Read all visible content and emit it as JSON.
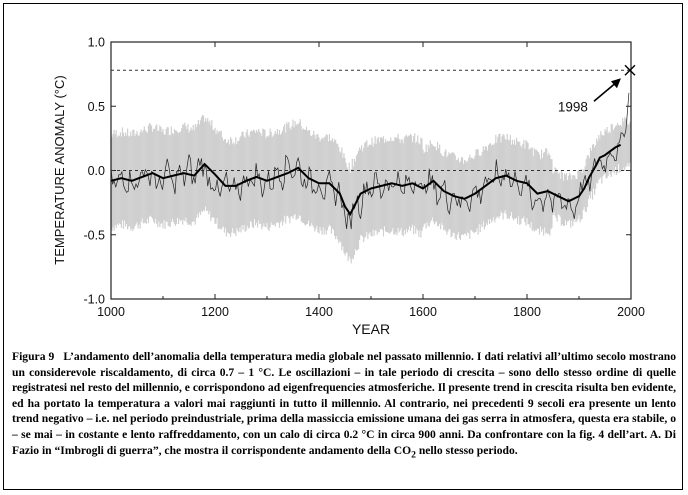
{
  "chart_data": {
    "type": "line",
    "title": "",
    "xlabel": "YEAR",
    "ylabel": "TEMPERATURE ANOMALY (°C)",
    "xlim": [
      1000,
      2000
    ],
    "ylim": [
      -1.0,
      1.0
    ],
    "x_ticks": [
      "1000",
      "1200",
      "1400",
      "1600",
      "1800",
      "2000"
    ],
    "y_ticks": [
      "-1.0",
      "-0.5",
      "0.0",
      "0.5",
      "1.0"
    ],
    "grid": false,
    "reference_lines": [
      0.0,
      0.78
    ],
    "annotation": {
      "label": "1998",
      "x": 1998,
      "y": 0.78
    },
    "series": [
      {
        "style": "smoothed",
        "x": [
          1000,
          1020,
          1040,
          1060,
          1080,
          1100,
          1120,
          1140,
          1160,
          1180,
          1200,
          1220,
          1240,
          1260,
          1280,
          1300,
          1320,
          1340,
          1360,
          1380,
          1400,
          1420,
          1440,
          1450,
          1460,
          1470,
          1480,
          1500,
          1520,
          1540,
          1560,
          1580,
          1600,
          1620,
          1640,
          1660,
          1680,
          1700,
          1720,
          1740,
          1760,
          1780,
          1800,
          1820,
          1840,
          1860,
          1880,
          1900,
          1910,
          1920,
          1930,
          1940,
          1950,
          1960,
          1970,
          1980
        ],
        "values": [
          -0.08,
          -0.06,
          -0.08,
          -0.05,
          -0.02,
          -0.06,
          -0.04,
          -0.02,
          -0.04,
          0.05,
          -0.03,
          -0.12,
          -0.12,
          -0.08,
          -0.05,
          -0.08,
          -0.05,
          -0.02,
          0.02,
          -0.06,
          -0.1,
          -0.1,
          -0.18,
          -0.28,
          -0.34,
          -0.26,
          -0.18,
          -0.14,
          -0.12,
          -0.1,
          -0.12,
          -0.1,
          -0.14,
          -0.08,
          -0.16,
          -0.2,
          -0.22,
          -0.18,
          -0.12,
          -0.06,
          -0.04,
          -0.08,
          -0.1,
          -0.18,
          -0.16,
          -0.2,
          -0.24,
          -0.2,
          -0.14,
          -0.05,
          0.02,
          0.1,
          0.12,
          0.15,
          0.18,
          0.2
        ]
      },
      {
        "style": "annual",
        "x": [
          1000,
          1010,
          1020,
          1030,
          1040,
          1050,
          1060,
          1070,
          1080,
          1090,
          1100,
          1110,
          1120,
          1130,
          1140,
          1150,
          1160,
          1170,
          1180,
          1190,
          1200,
          1210,
          1220,
          1230,
          1240,
          1250,
          1260,
          1270,
          1280,
          1290,
          1300,
          1310,
          1320,
          1330,
          1340,
          1350,
          1360,
          1370,
          1380,
          1390,
          1400,
          1410,
          1420,
          1430,
          1440,
          1450,
          1460,
          1470,
          1480,
          1490,
          1500,
          1510,
          1520,
          1530,
          1540,
          1550,
          1560,
          1570,
          1580,
          1590,
          1600,
          1610,
          1620,
          1630,
          1640,
          1650,
          1660,
          1670,
          1680,
          1690,
          1700,
          1710,
          1720,
          1730,
          1740,
          1750,
          1760,
          1770,
          1780,
          1790,
          1800,
          1810,
          1820,
          1830,
          1840,
          1850,
          1860,
          1870,
          1880,
          1890,
          1900,
          1910,
          1920,
          1930,
          1940,
          1950,
          1960,
          1970,
          1980,
          1985,
          1990,
          1995,
          1998
        ],
        "values": [
          -0.05,
          -0.15,
          0.0,
          -0.12,
          -0.02,
          -0.18,
          0.05,
          -0.1,
          0.02,
          -0.14,
          -0.08,
          0.04,
          -0.16,
          0.02,
          -0.1,
          0.08,
          -0.12,
          0.1,
          0.0,
          -0.08,
          -0.1,
          -0.22,
          -0.05,
          -0.2,
          -0.1,
          -0.18,
          0.0,
          -0.14,
          0.02,
          -0.16,
          -0.05,
          -0.12,
          0.05,
          -0.08,
          0.12,
          -0.05,
          0.08,
          -0.12,
          -0.02,
          -0.16,
          -0.05,
          -0.2,
          -0.08,
          -0.22,
          -0.12,
          -0.38,
          -0.42,
          -0.2,
          -0.3,
          -0.08,
          -0.18,
          -0.05,
          -0.2,
          -0.04,
          -0.16,
          -0.02,
          -0.22,
          -0.06,
          -0.14,
          -0.02,
          -0.2,
          -0.05,
          -0.12,
          -0.22,
          -0.1,
          -0.28,
          -0.14,
          -0.3,
          -0.18,
          -0.26,
          -0.12,
          -0.22,
          -0.04,
          -0.16,
          0.02,
          -0.1,
          0.05,
          -0.14,
          -0.02,
          -0.2,
          -0.05,
          -0.3,
          -0.16,
          -0.28,
          -0.12,
          -0.32,
          -0.18,
          -0.3,
          -0.2,
          -0.36,
          -0.16,
          -0.08,
          -0.14,
          0.05,
          0.08,
          0.02,
          0.18,
          0.1,
          0.22,
          0.3,
          0.35,
          0.5,
          0.78
        ]
      }
    ]
  },
  "caption": {
    "figure_label": "Figura 9",
    "text_before_sub": "L’andamento dell’anomalia della temperatura media globale nel passato millennio. I dati relativi all’ultimo secolo mostrano un considerevole riscaldamento, di circa 0.7 – 1 °C.  Le oscillazioni – in tale periodo di crescita – sono dello stesso ordine di quelle registratesi nel resto del millennio, e corrispondono ad eigenfrequencies atmosferiche. Il presente trend in crescita risulta ben evidente, ed ha portato la temperatura a valori mai raggiunti in tutto il millennio.  Al contrario, nei precedenti 9 secoli era presente un lento trend negativo – i.e. nel periodo preindustriale, prima della massiccia emissione umana dei gas serra in atmosfera, questa era stabile, o – se mai –  in costante e lento raffreddamento, con un calo di circa 0.2 °C in circa 900 anni.  Da confrontare con la fig. 4 dell’art. A. Di Fazio in “Imbrogli di guerra”, che mostra il corrispondente andamento della CO",
    "subscript": "2",
    "text_after_sub": " nello stesso periodo."
  }
}
